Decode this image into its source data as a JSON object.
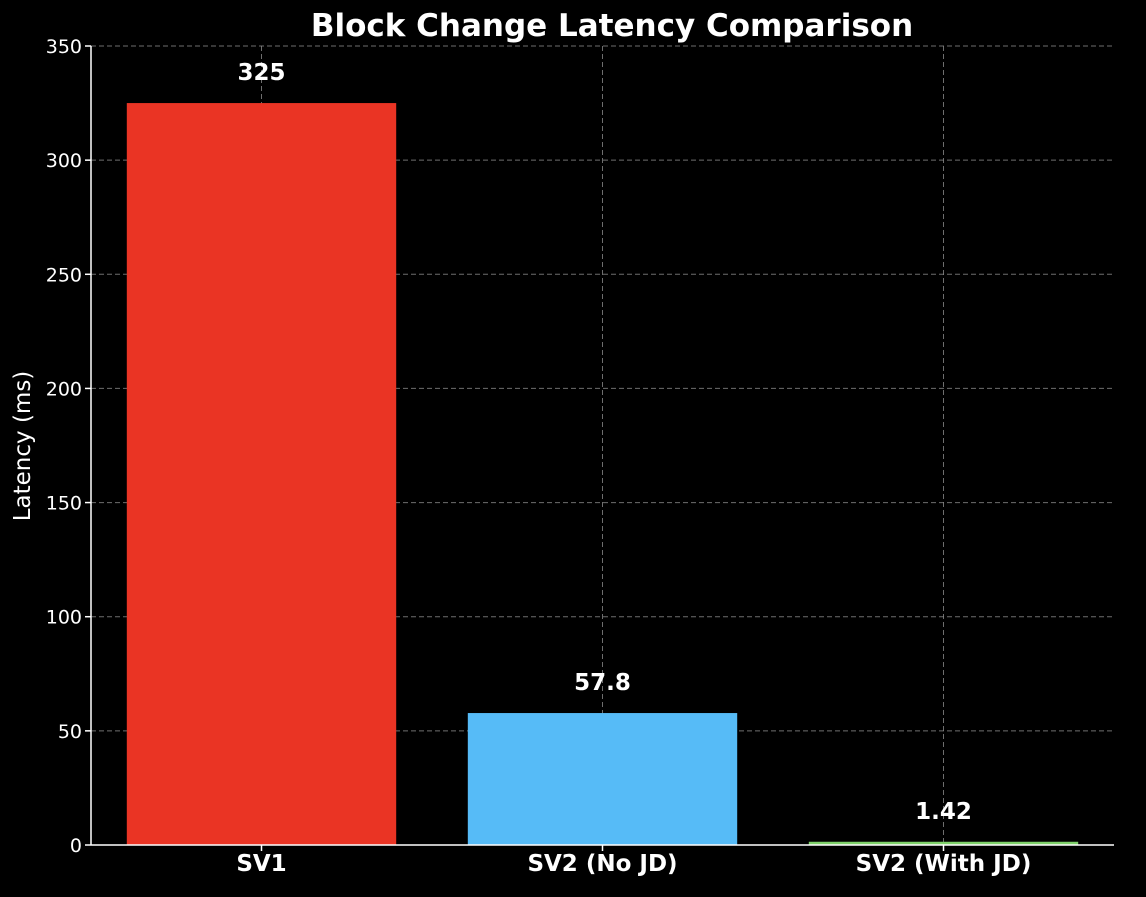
{
  "chart_data": {
    "type": "bar",
    "title": "Block Change Latency Comparison",
    "xlabel": "",
    "ylabel": "Latency (ms)",
    "categories": [
      "SV1",
      "SV2 (No JD)",
      "SV2 (With JD)"
    ],
    "values": [
      325,
      57.8,
      1.42
    ],
    "value_labels": [
      "325",
      "57.8",
      "1.42"
    ],
    "colors": [
      "#ea3424",
      "#56bbf7",
      "#7ed16a"
    ],
    "ylim": [
      0,
      350
    ],
    "yticks": [
      0,
      50,
      100,
      150,
      200,
      250,
      300,
      350
    ],
    "grid": true,
    "background": "#000000"
  }
}
